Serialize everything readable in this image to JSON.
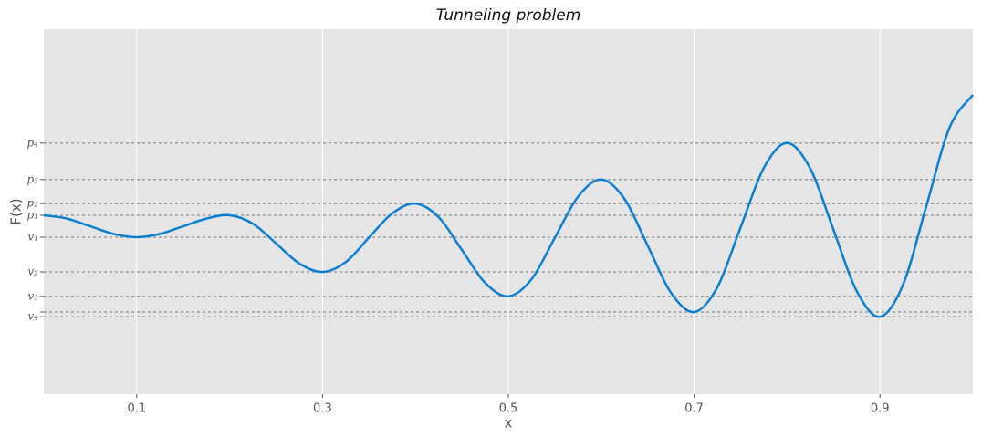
{
  "chart_data": {
    "type": "line",
    "title": "Tunneling problem",
    "x_label": "x",
    "y_label": "F(x)",
    "x": [
      0,
      0.025,
      0.05,
      0.075,
      0.1,
      0.125,
      0.15,
      0.175,
      0.2,
      0.225,
      0.25,
      0.275,
      0.3,
      0.325,
      0.35,
      0.375,
      0.4,
      0.425,
      0.45,
      0.475,
      0.5,
      0.525,
      0.55,
      0.575,
      0.6,
      0.625,
      0.65,
      0.675,
      0.7,
      0.725,
      0.75,
      0.775,
      0.8,
      0.825,
      0.85,
      0.875,
      0.9,
      0.925,
      0.95,
      0.975,
      1
    ],
    "series": [
      {
        "name": "F(x)",
        "color": "#0a7fd0",
        "values": [
          4.9,
          4.81,
          4.6,
          4.39,
          4.3,
          4.39,
          4.6,
          4.81,
          4.9,
          4.67,
          4.13,
          3.58,
          3.35,
          3.62,
          4.29,
          4.95,
          5.22,
          4.85,
          3.95,
          3.05,
          2.68,
          3.15,
          4.28,
          5.41,
          5.88,
          5.35,
          4.07,
          2.78,
          2.25,
          2.93,
          4.57,
          6.2,
          6.88,
          6.18,
          4.5,
          2.82,
          2.12,
          3.01,
          5.16,
          7.31,
          8.2
        ]
      }
    ],
    "xlim": [
      0,
      1
    ],
    "xticks": [
      0.1,
      0.3,
      0.5,
      0.7,
      0.9
    ],
    "ylim": [
      0,
      10
    ],
    "yticks": [
      {
        "value": 6.88,
        "label": "p₄"
      },
      {
        "value": 5.88,
        "label": "p₃"
      },
      {
        "value": 5.22,
        "label": "p₂"
      },
      {
        "value": 4.9,
        "label": "p₁"
      },
      {
        "value": 4.3,
        "label": "v₁"
      },
      {
        "value": 3.35,
        "label": "v₂"
      },
      {
        "value": 2.68,
        "label": "v₃"
      },
      {
        "value": 2.25,
        "label": null
      },
      {
        "value": 2.12,
        "label": "v₄"
      }
    ],
    "grid": true
  }
}
